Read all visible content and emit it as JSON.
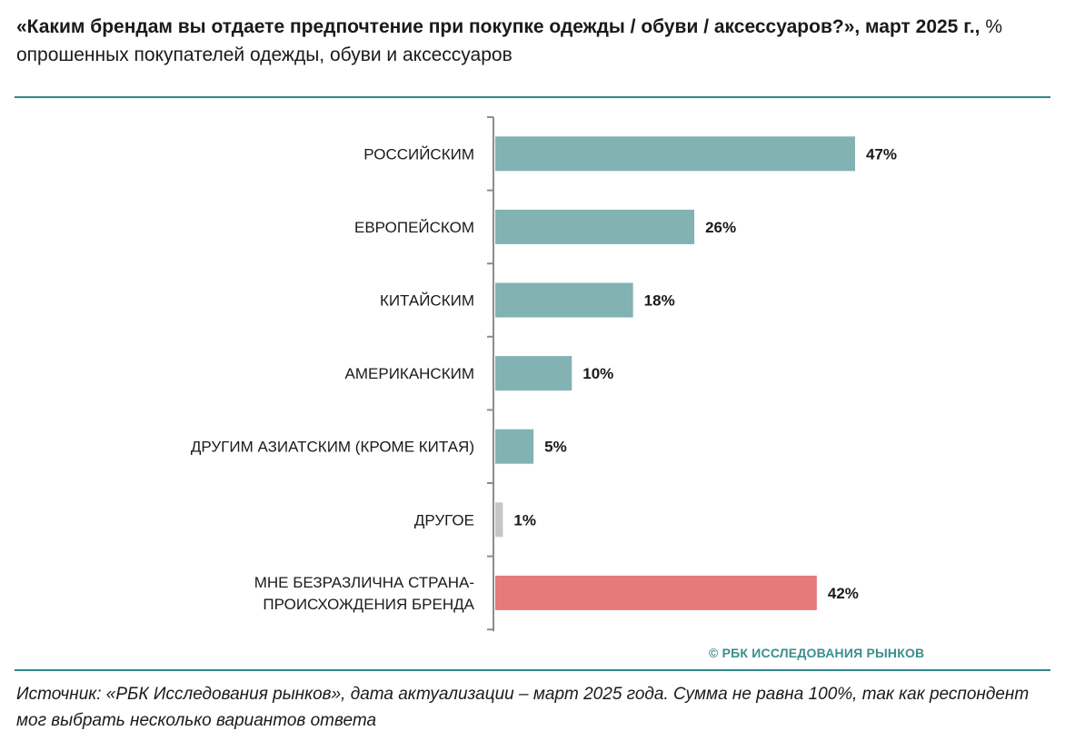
{
  "header": {
    "title_bold": "«Каким брендам вы отдаете предпочтение при покупке одежды / обуви / аксессуаров?», март 2025 г.,",
    "title_regular": " % опрошенных покупателей одежды, обуви и аксессуаров"
  },
  "chart_data": {
    "type": "bar",
    "orientation": "horizontal",
    "categories": [
      "РОССИЙСКИМ",
      "ЕВРОПЕЙСКОМ",
      "КИТАЙСКИМ",
      "АМЕРИКАНСКИМ",
      "ДРУГИМ АЗИАТСКИМ (КРОМЕ КИТАЯ)",
      "ДРУГОЕ",
      "МНЕ БЕЗРАЗЛИЧНА СТРАНА-\nПРОИСХОЖДЕНИЯ БРЕНДА"
    ],
    "values": [
      47,
      26,
      18,
      10,
      5,
      1,
      42
    ],
    "value_labels": [
      "47%",
      "26%",
      "18%",
      "10%",
      "5%",
      "1%",
      "42%"
    ],
    "colors": [
      "#82b2b2",
      "#82b2b2",
      "#82b2b2",
      "#82b2b2",
      "#82b2b2",
      "#c6c6c6",
      "#e47a7a"
    ],
    "xlim": [
      0,
      50
    ],
    "grid": false,
    "legend": "none"
  },
  "watermark": "© РБК ИССЛЕДОВАНИЯ РЫНКОВ",
  "source": "Источник: «РБК Исследования рынков», дата актуализации – март 2025 года. Сумма не равна 100%, так как респондент мог выбрать несколько вариантов ответа"
}
